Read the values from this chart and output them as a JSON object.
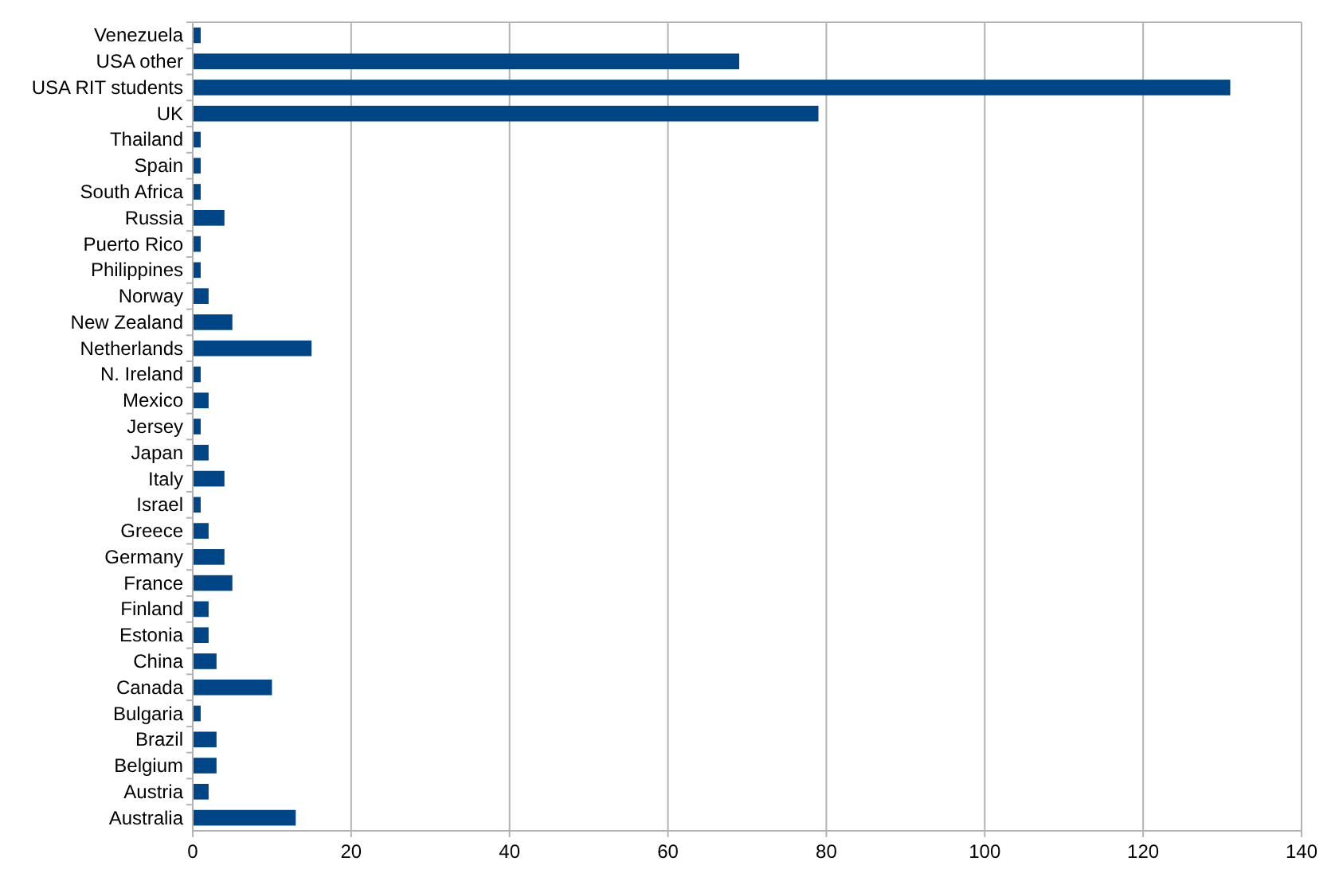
{
  "chart_data": {
    "type": "bar",
    "orientation": "horizontal",
    "categories": [
      "Venezuela",
      "USA other",
      "USA RIT students",
      "UK",
      "Thailand",
      "Spain",
      "South Africa",
      "Russia",
      "Puerto Rico",
      "Philippines",
      "Norway",
      "New Zealand",
      "Netherlands",
      "N. Ireland",
      "Mexico",
      "Jersey",
      "Japan",
      "Italy",
      "Israel",
      "Greece",
      "Germany",
      "France",
      "Finland",
      "Estonia",
      "China",
      "Canada",
      "Bulgaria",
      "Brazil",
      "Belgium",
      "Austria",
      "Australia"
    ],
    "values": [
      1,
      69,
      131,
      79,
      1,
      1,
      1,
      4,
      1,
      1,
      2,
      5,
      15,
      1,
      2,
      1,
      2,
      4,
      1,
      2,
      4,
      5,
      2,
      2,
      3,
      10,
      1,
      3,
      3,
      2,
      13
    ],
    "color": "#004586",
    "xlim": [
      0,
      140
    ],
    "xticks": [
      0,
      20,
      40,
      60,
      80,
      100,
      120,
      140
    ],
    "grid": "x"
  }
}
